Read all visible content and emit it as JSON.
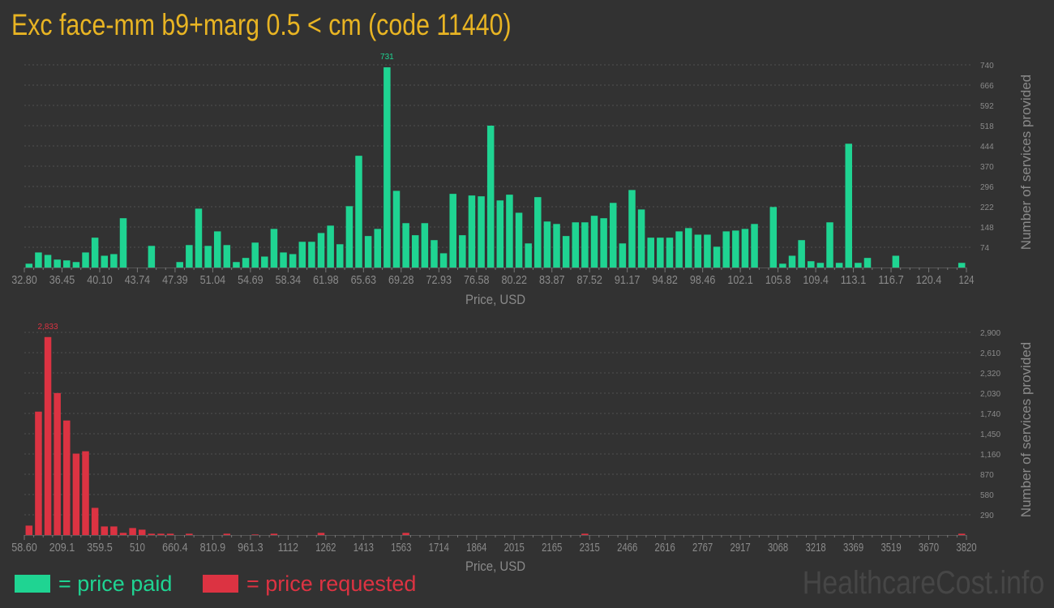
{
  "title": "Exc face-mm b9+marg 0.5 < cm (code 11440)",
  "colors": {
    "paid": "#1fd492",
    "requested": "#dc3342",
    "title": "#e8b423",
    "background": "#323232"
  },
  "legend": {
    "paid": "= price paid",
    "requested": "= price requested"
  },
  "watermark": "HealthcareCost.info",
  "chart_data": [
    {
      "type": "bar",
      "series": [
        {
          "name": "price paid",
          "values": [
            14,
            55,
            46,
            29,
            26,
            20,
            55,
            109,
            43,
            49,
            180,
            0,
            0,
            79,
            0,
            0,
            20,
            82,
            215,
            79,
            132,
            82,
            20,
            35,
            91,
            40,
            141,
            55,
            49,
            94,
            94,
            126,
            153,
            85,
            224,
            408,
            115,
            141,
            731,
            280,
            162,
            118,
            162,
            100,
            52,
            269,
            118,
            263,
            260,
            518,
            245,
            266,
            200,
            88,
            257,
            168,
            159,
            115,
            165,
            165,
            189,
            180,
            236,
            88,
            283,
            212,
            109,
            109,
            109,
            132,
            144,
            120,
            120,
            76,
            132,
            135,
            141,
            159,
            0,
            221,
            14,
            43,
            100,
            23,
            17,
            165,
            17,
            452,
            17,
            35,
            0,
            0,
            43,
            0,
            0,
            0,
            0,
            0,
            0,
            17
          ]
        }
      ],
      "x_range": [
        32.8,
        124
      ],
      "x_tick_labels": [
        "32.80",
        "36.45",
        "40.10",
        "43.74",
        "47.39",
        "51.04",
        "54.69",
        "58.34",
        "61.98",
        "65.63",
        "69.28",
        "72.93",
        "76.58",
        "80.22",
        "83.87",
        "87.52",
        "91.17",
        "94.82",
        "98.46",
        "102.1",
        "105.8",
        "109.4",
        "113.1",
        "116.7",
        "120.4",
        "124"
      ],
      "y_tick_labels": [
        "74",
        "148",
        "222",
        "296",
        "370",
        "444",
        "518",
        "592",
        "666",
        "740"
      ],
      "ylim": [
        0,
        740
      ],
      "xlabel": "Price, USD",
      "ylabel": "Number of services provided",
      "peak_label": "731",
      "peak_index": 38,
      "grid": true
    },
    {
      "type": "bar",
      "series": [
        {
          "name": "price requested",
          "values": [
            135,
            1766,
            2833,
            2032,
            1639,
            1165,
            1199,
            389,
            123,
            123,
            31,
            100,
            77,
            19,
            19,
            19,
            0,
            19,
            0,
            0,
            0,
            19,
            0,
            0,
            8,
            0,
            19,
            0,
            0,
            0,
            0,
            31,
            0,
            0,
            0,
            0,
            0,
            0,
            0,
            0,
            31,
            0,
            0,
            0,
            0,
            0,
            0,
            0,
            0,
            0,
            0,
            0,
            0,
            0,
            0,
            0,
            0,
            0,
            0,
            19,
            0,
            0,
            0,
            0,
            0,
            0,
            0,
            0,
            0,
            0,
            0,
            0,
            0,
            0,
            0,
            0,
            0,
            0,
            0,
            0,
            0,
            0,
            0,
            0,
            0,
            0,
            0,
            0,
            0,
            0,
            0,
            0,
            0,
            0,
            0,
            0,
            0,
            0,
            0,
            19
          ]
        }
      ],
      "x_range": [
        58.6,
        3820
      ],
      "x_tick_labels": [
        "58.60",
        "209.1",
        "359.5",
        "510",
        "660.4",
        "810.9",
        "961.3",
        "1112",
        "1262",
        "1413",
        "1563",
        "1714",
        "1864",
        "2015",
        "2165",
        "2315",
        "2466",
        "2616",
        "2767",
        "2917",
        "3068",
        "3218",
        "3369",
        "3519",
        "3670",
        "3820"
      ],
      "y_tick_labels": [
        "290",
        "580",
        "870",
        "1,160",
        "1,450",
        "1,740",
        "2,030",
        "2,320",
        "2,610",
        "2,900"
      ],
      "ylim": [
        0,
        2900
      ],
      "xlabel": "Price, USD",
      "ylabel": "Number of services provided",
      "peak_label": "2,833",
      "peak_index": 2,
      "grid": true
    }
  ]
}
